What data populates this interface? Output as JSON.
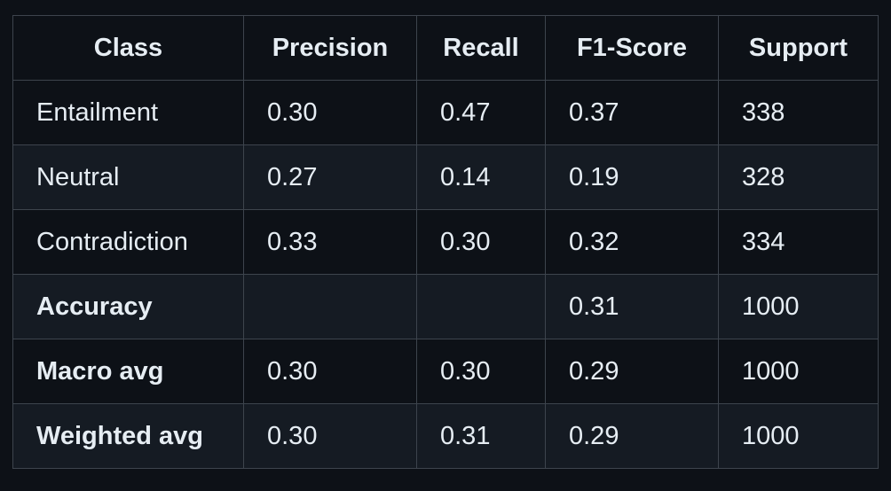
{
  "table": {
    "headers": [
      "Class",
      "Precision",
      "Recall",
      "F1-Score",
      "Support"
    ],
    "rows": [
      {
        "label": "Entailment",
        "bold": false,
        "precision": "0.30",
        "recall": "0.47",
        "f1": "0.37",
        "support": "338"
      },
      {
        "label": "Neutral",
        "bold": false,
        "precision": "0.27",
        "recall": "0.14",
        "f1": "0.19",
        "support": "328"
      },
      {
        "label": "Contradiction",
        "bold": false,
        "precision": "0.33",
        "recall": "0.30",
        "f1": "0.32",
        "support": "334"
      },
      {
        "label": "Accuracy",
        "bold": true,
        "precision": "",
        "recall": "",
        "f1": "0.31",
        "support": "1000"
      },
      {
        "label": "Macro avg",
        "bold": true,
        "precision": "0.30",
        "recall": "0.30",
        "f1": "0.29",
        "support": "1000"
      },
      {
        "label": "Weighted avg",
        "bold": true,
        "precision": "0.30",
        "recall": "0.31",
        "f1": "0.29",
        "support": "1000"
      }
    ]
  }
}
